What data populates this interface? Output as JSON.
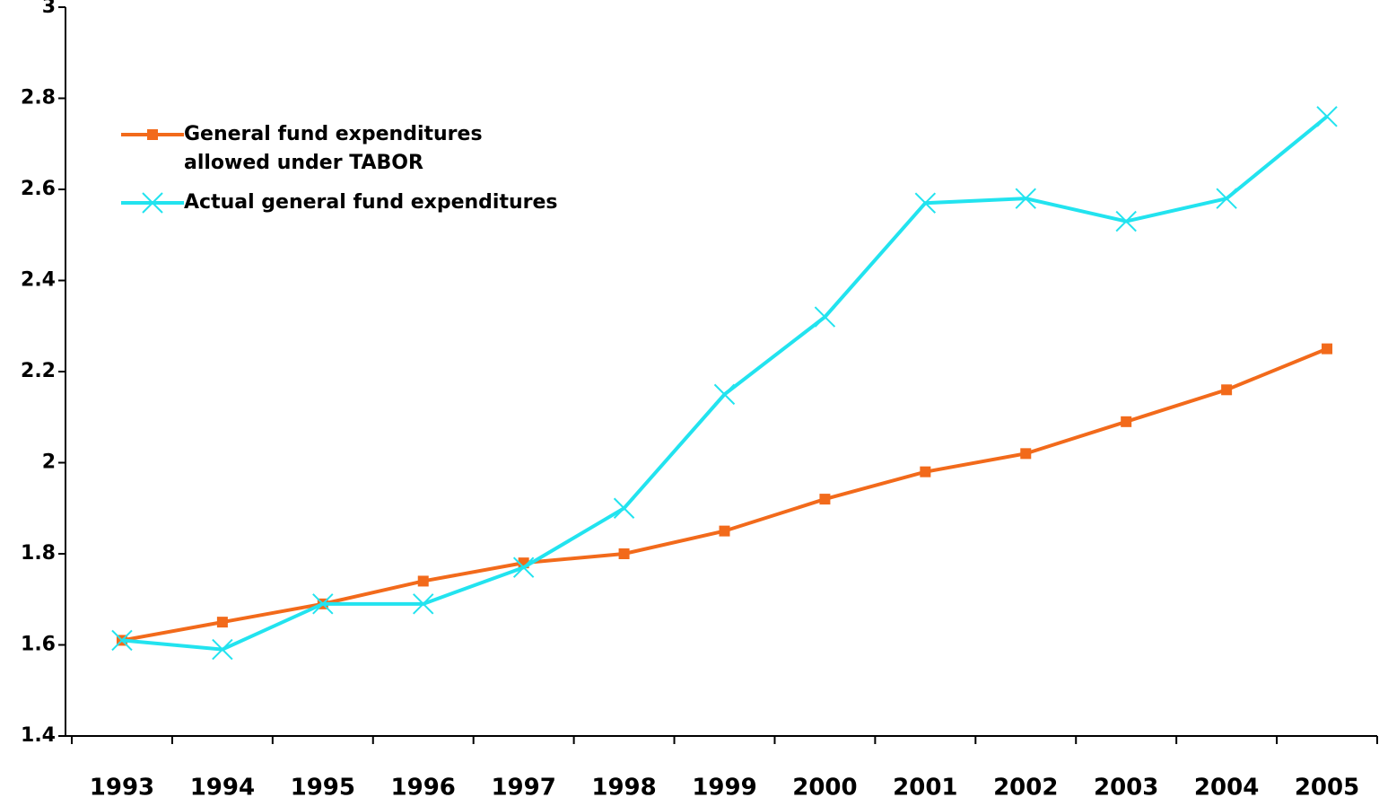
{
  "chart_data": {
    "type": "line",
    "categories": [
      "1993",
      "1994",
      "1995",
      "1996",
      "1997",
      "1998",
      "1999",
      "2000",
      "2001",
      "2002",
      "2003",
      "2004",
      "2005"
    ],
    "series": [
      {
        "name": "General fund expenditures\nallowed under TABOR",
        "color": "#f26a1b",
        "marker": "square",
        "values": [
          1.61,
          1.65,
          1.69,
          1.74,
          1.78,
          1.8,
          1.85,
          1.92,
          1.98,
          2.02,
          2.09,
          2.16,
          2.25
        ]
      },
      {
        "name": "Actual general fund expenditures",
        "color": "#22e3ef",
        "marker": "x",
        "values": [
          1.61,
          1.59,
          1.69,
          1.69,
          1.77,
          1.9,
          2.15,
          2.32,
          2.57,
          2.58,
          2.53,
          2.58,
          2.76
        ]
      }
    ],
    "ylim": [
      1.4,
      3
    ],
    "yticks": [
      1.4,
      1.6,
      1.8,
      2,
      2.2,
      2.4,
      2.6,
      2.8,
      3
    ],
    "grid": false,
    "legend": "upper left"
  }
}
